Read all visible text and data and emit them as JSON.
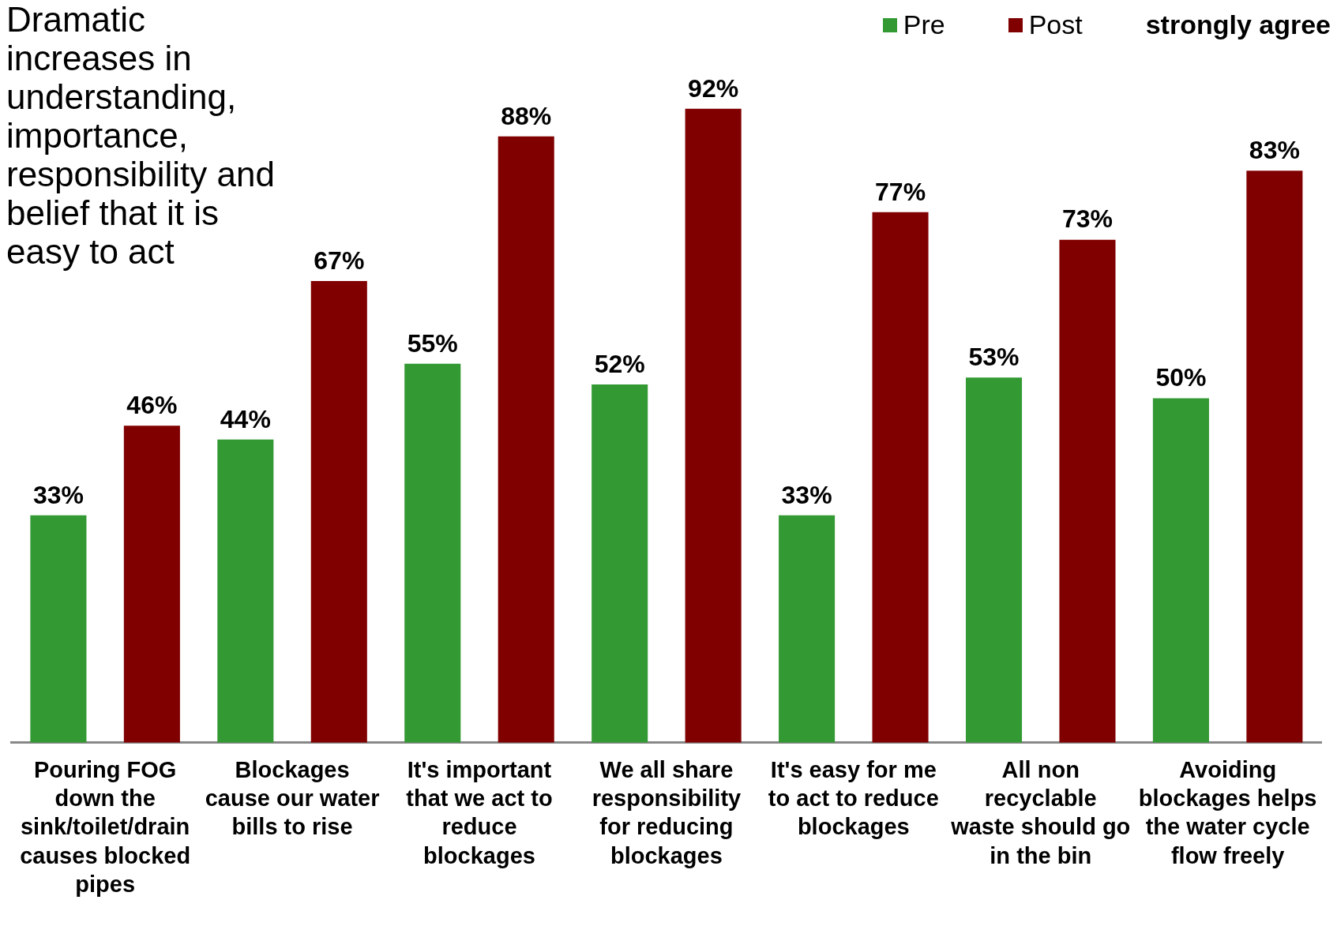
{
  "chart_data": {
    "type": "bar",
    "title": "Dramatic increases in understanding, importance, responsibility and belief that it is easy to act",
    "legend_title": "strongly agree",
    "categories": [
      "Pouring FOG down the sink/toilet/drain causes blocked pipes",
      "Blockages cause our water bills to rise",
      "It's important that we act to reduce blockages",
      "We all share responsibility for reducing blockages",
      "It's easy for me to act to reduce blockages",
      "All non recyclable waste should go in the bin",
      "Avoiding blockages helps the water cycle flow freely"
    ],
    "series": [
      {
        "name": "Pre",
        "color": "#339933",
        "values": [
          33,
          44,
          55,
          52,
          33,
          53,
          50
        ],
        "value_labels": [
          "33%",
          "44%",
          "55%",
          "52%",
          "33%",
          "53%",
          "50%"
        ]
      },
      {
        "name": "Post",
        "color": "#800000",
        "values": [
          46,
          67,
          88,
          92,
          77,
          73,
          83
        ],
        "value_labels": [
          "46%",
          "67%",
          "88%",
          "92%",
          "77%",
          "73%",
          "83%"
        ]
      }
    ],
    "tick_labels": "x",
    "legend": "top right"
  }
}
